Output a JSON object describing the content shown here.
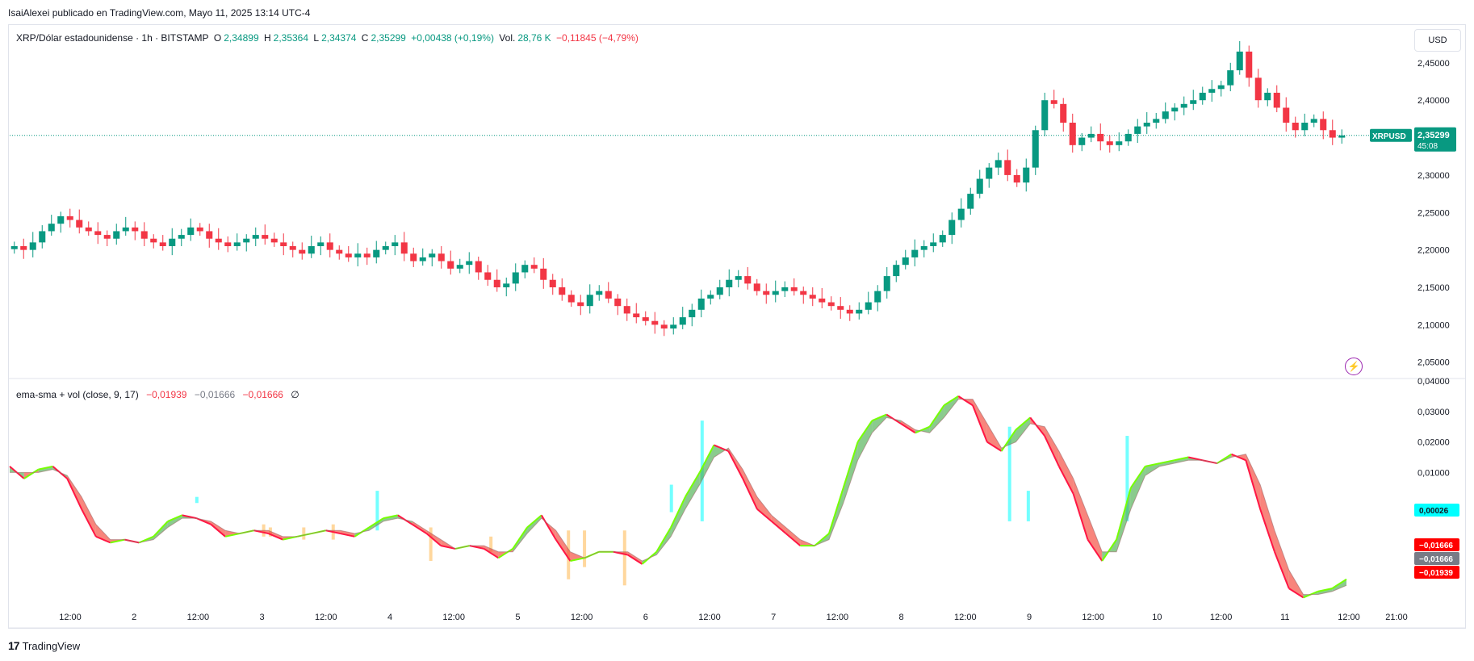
{
  "attribution": "IsaiAlexei publicado en TradingView.com, Mayo 11, 2025 13:14 UTC-4",
  "legend": {
    "symbol": "XRP/Dólar estadounidense · 1h · BITSTAMP",
    "o_label": "O",
    "o": "2,34899",
    "h_label": "H",
    "h": "2,35364",
    "l_label": "L",
    "l": "2,34374",
    "c_label": "C",
    "c": "2,35299",
    "change": "+0,00438 (+0,19%)",
    "vol_label": "Vol.",
    "vol": "28,76 K",
    "vol_change": "−0,11845 (−4,79%)"
  },
  "currency_button": "USD",
  "price_tag": {
    "symbol": "XRPUSD",
    "price": "2,35299",
    "countdown": "45:08"
  },
  "indicator_legend": {
    "name": "ema-sma + vol (close, 9, 17)",
    "v1": "−0,01939",
    "v2": "−0,01666",
    "v3": "−0,01666",
    "v4": "∅"
  },
  "indicator_tags": [
    {
      "value": "0,00026",
      "color": "#00ffff",
      "text_color": "#131722"
    },
    {
      "value": "−0,01666",
      "color": "#ff0000",
      "text_color": "#ffffff"
    },
    {
      "value": "−0,01666",
      "color": "#787b86",
      "text_color": "#ffffff"
    },
    {
      "value": "−0,01939",
      "color": "#ff0000",
      "text_color": "#ffffff"
    }
  ],
  "footer": {
    "logo": "17",
    "brand": "TradingView"
  },
  "colors": {
    "up": "#089981",
    "down": "#f23645",
    "ema": "#4caf50",
    "sma": "#ff5252",
    "fill_up": "#4caf50",
    "fill_down": "#f44336",
    "vol_cyan": "#00ffff",
    "vol_orange": "#ffb74d"
  },
  "chart_data": [
    {
      "type": "candlestick",
      "title": "XRP/Dólar estadounidense · 1h · BITSTAMP",
      "ylim": [
        2.04,
        2.48
      ],
      "y_ticks": [
        "2,45000",
        "2,40000",
        "2,35000",
        "2,30000",
        "2,25000",
        "2,20000",
        "2,15000",
        "2,10000",
        "2,05000"
      ],
      "y_tick_values": [
        2.45,
        2.4,
        2.35,
        2.3,
        2.25,
        2.2,
        2.15,
        2.1,
        2.05
      ],
      "x_ticks": [
        "12:00",
        "2",
        "12:00",
        "3",
        "12:00",
        "4",
        "12:00",
        "5",
        "12:00",
        "6",
        "12:00",
        "7",
        "12:00",
        "8",
        "12:00",
        "9",
        "12:00",
        "10",
        "12:00",
        "11",
        "12:00",
        "21:00"
      ],
      "last_price": 2.35299,
      "close_path": [
        2.205,
        2.2,
        2.21,
        2.225,
        2.235,
        2.245,
        2.24,
        2.23,
        2.225,
        2.22,
        2.215,
        2.225,
        2.23,
        2.225,
        2.215,
        2.21,
        2.205,
        2.215,
        2.22,
        2.23,
        2.225,
        2.215,
        2.21,
        2.205,
        2.21,
        2.215,
        2.22,
        2.215,
        2.21,
        2.205,
        2.2,
        2.195,
        2.205,
        2.21,
        2.2,
        2.195,
        2.19,
        2.195,
        2.19,
        2.2,
        2.205,
        2.21,
        2.195,
        2.185,
        2.19,
        2.195,
        2.185,
        2.175,
        2.18,
        2.185,
        2.17,
        2.16,
        2.15,
        2.155,
        2.17,
        2.18,
        2.175,
        2.16,
        2.15,
        2.14,
        2.13,
        2.125,
        2.14,
        2.145,
        2.135,
        2.125,
        2.115,
        2.11,
        2.105,
        2.1,
        2.095,
        2.1,
        2.11,
        2.12,
        2.135,
        2.14,
        2.15,
        2.16,
        2.165,
        2.155,
        2.145,
        2.14,
        2.145,
        2.15,
        2.145,
        2.14,
        2.135,
        2.13,
        2.125,
        2.12,
        2.115,
        2.12,
        2.13,
        2.145,
        2.165,
        2.18,
        2.19,
        2.2,
        2.205,
        2.21,
        2.22,
        2.24,
        2.255,
        2.275,
        2.295,
        2.31,
        2.32,
        2.3,
        2.29,
        2.31,
        2.36,
        2.4,
        2.395,
        2.37,
        2.34,
        2.35,
        2.355,
        2.345,
        2.34,
        2.345,
        2.355,
        2.365,
        2.37,
        2.375,
        2.385,
        2.39,
        2.395,
        2.4,
        2.41,
        2.415,
        2.42,
        2.44,
        2.465,
        2.43,
        2.4,
        2.41,
        2.39,
        2.37,
        2.36,
        2.37,
        2.375,
        2.36,
        2.35,
        2.353
      ]
    },
    {
      "type": "line",
      "title": "ema-sma + vol (close, 9, 17)",
      "ylim": [
        -0.033,
        0.04
      ],
      "y_ticks": [
        "0,04000",
        "0,03000",
        "0,02000",
        "0,01000"
      ],
      "y_tick_values": [
        0.04,
        0.03,
        0.02,
        0.01
      ],
      "series": [
        {
          "values": [
            0.012,
            0.008,
            0.011,
            0.012,
            0.008,
            -0.002,
            -0.011,
            -0.013,
            -0.012,
            -0.013,
            -0.011,
            -0.006,
            -0.004,
            -0.005,
            -0.007,
            -0.011,
            -0.01,
            -0.009,
            -0.01,
            -0.012,
            -0.011,
            -0.01,
            -0.009,
            -0.01,
            -0.011,
            -0.008,
            -0.005,
            -0.004,
            -0.007,
            -0.01,
            -0.014,
            -0.015,
            -0.014,
            -0.015,
            -0.018,
            -0.015,
            -0.008,
            -0.004,
            -0.012,
            -0.019,
            -0.018,
            -0.016,
            -0.016,
            -0.017,
            -0.02,
            -0.016,
            -0.008,
            0.002,
            0.01,
            0.019,
            0.017,
            0.008,
            -0.002,
            -0.006,
            -0.01,
            -0.014,
            -0.014,
            -0.01,
            0.005,
            0.02,
            0.027,
            0.029,
            0.026,
            0.023,
            0.025,
            0.032,
            0.035,
            0.032,
            0.02,
            0.017,
            0.024,
            0.028,
            0.022,
            0.012,
            0.003,
            -0.012,
            -0.019,
            -0.012,
            0.005,
            0.012,
            0.013,
            0.014,
            0.015,
            0.014,
            0.013,
            0.016,
            0.014,
            -0.002,
            -0.016,
            -0.028,
            -0.031,
            -0.029,
            -0.028,
            -0.025
          ]
        },
        {
          "values": [
            0.01,
            0.01,
            0.01,
            0.011,
            0.009,
            0.002,
            -0.007,
            -0.012,
            -0.012,
            -0.013,
            -0.012,
            -0.008,
            -0.005,
            -0.005,
            -0.006,
            -0.009,
            -0.01,
            -0.009,
            -0.009,
            -0.011,
            -0.011,
            -0.01,
            -0.009,
            -0.009,
            -0.01,
            -0.009,
            -0.006,
            -0.005,
            -0.006,
            -0.009,
            -0.012,
            -0.015,
            -0.014,
            -0.014,
            -0.016,
            -0.016,
            -0.01,
            -0.005,
            -0.009,
            -0.016,
            -0.018,
            -0.016,
            -0.016,
            -0.016,
            -0.019,
            -0.017,
            -0.011,
            -0.002,
            0.006,
            0.015,
            0.018,
            0.011,
            0.002,
            -0.004,
            -0.008,
            -0.012,
            -0.014,
            -0.012,
            0.0,
            0.014,
            0.023,
            0.028,
            0.027,
            0.024,
            0.023,
            0.028,
            0.034,
            0.034,
            0.026,
            0.018,
            0.02,
            0.026,
            0.025,
            0.017,
            0.008,
            -0.004,
            -0.016,
            -0.016,
            -0.002,
            0.009,
            0.012,
            0.013,
            0.014,
            0.014,
            0.013,
            0.015,
            0.016,
            0.006,
            -0.009,
            -0.022,
            -0.03,
            -0.03,
            -0.029,
            -0.027
          ]
        }
      ],
      "vol_bars": [
        {
          "pos": 0.14,
          "from": 0.0,
          "to": 0.002,
          "color": "cyan"
        },
        {
          "pos": 0.19,
          "from": -0.011,
          "to": -0.007,
          "color": "orange"
        },
        {
          "pos": 0.195,
          "from": -0.011,
          "to": -0.008,
          "color": "orange"
        },
        {
          "pos": 0.22,
          "from": -0.012,
          "to": -0.008,
          "color": "orange"
        },
        {
          "pos": 0.242,
          "from": -0.012,
          "to": -0.007,
          "color": "orange"
        },
        {
          "pos": 0.275,
          "from": -0.009,
          "to": 0.004,
          "color": "cyan"
        },
        {
          "pos": 0.315,
          "from": -0.019,
          "to": -0.008,
          "color": "orange"
        },
        {
          "pos": 0.36,
          "from": -0.016,
          "to": -0.011,
          "color": "orange"
        },
        {
          "pos": 0.418,
          "from": -0.025,
          "to": -0.009,
          "color": "orange"
        },
        {
          "pos": 0.43,
          "from": -0.021,
          "to": -0.009,
          "color": "orange"
        },
        {
          "pos": 0.46,
          "from": -0.027,
          "to": -0.009,
          "color": "orange"
        },
        {
          "pos": 0.495,
          "from": -0.003,
          "to": 0.006,
          "color": "cyan"
        },
        {
          "pos": 0.518,
          "from": -0.006,
          "to": 0.027,
          "color": "cyan"
        },
        {
          "pos": 0.748,
          "from": -0.006,
          "to": 0.025,
          "color": "cyan"
        },
        {
          "pos": 0.762,
          "from": -0.006,
          "to": 0.004,
          "color": "cyan"
        },
        {
          "pos": 0.836,
          "from": -0.006,
          "to": 0.022,
          "color": "cyan"
        }
      ]
    }
  ]
}
